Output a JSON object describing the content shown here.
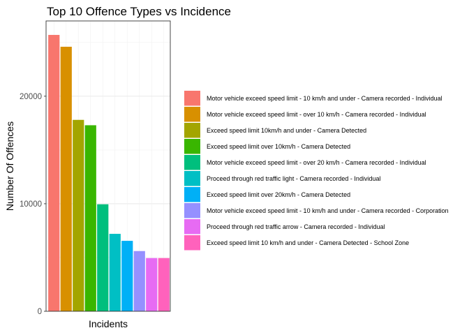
{
  "chart_data": {
    "type": "bar",
    "title": "Top 10 Offence Types vs Incidence",
    "xlabel": "Incidents",
    "ylabel": "Number Of Offences",
    "ylim": [
      0,
      27000
    ],
    "yticks": [
      0,
      10000,
      20000
    ],
    "grid": true,
    "legend_position": "right",
    "series": [
      {
        "name": "Motor vehicle exceed speed limit - 10 km/h and under - Camera recorded - Individual",
        "value": 25700,
        "color": "#F8766D"
      },
      {
        "name": "Motor vehicle exceed speed limit - over 10 km/h - Camera recorded - Individual",
        "value": 24600,
        "color": "#D89000"
      },
      {
        "name": "Exceed speed limit 10km/h and under - Camera Detected",
        "value": 17800,
        "color": "#A3A500"
      },
      {
        "name": "Exceed speed limit over 10km/h - Camera Detected",
        "value": 17300,
        "color": "#39B600"
      },
      {
        "name": "Motor vehicle exceed speed limit - over 20 km/h - Camera recorded - Individual",
        "value": 9950,
        "color": "#00BF7D"
      },
      {
        "name": "Proceed through red traffic light - Camera recorded - Individual",
        "value": 7200,
        "color": "#00BFC4"
      },
      {
        "name": "Exceed speed limit over 20km/h - Camera Detected",
        "value": 6550,
        "color": "#00B0F6"
      },
      {
        "name": "Motor vehicle exceed speed limit - 10 km/h and under - Camera recorded - Corporation",
        "value": 5600,
        "color": "#9590FF"
      },
      {
        "name": "Proceed through red traffic arrow - Camera recorded - Individual",
        "value": 4950,
        "color": "#E76BF3"
      },
      {
        "name": "Exceed speed limit 10 km/h and under - Camera Detected - School Zone",
        "value": 4950,
        "color": "#FF62BC"
      }
    ]
  }
}
